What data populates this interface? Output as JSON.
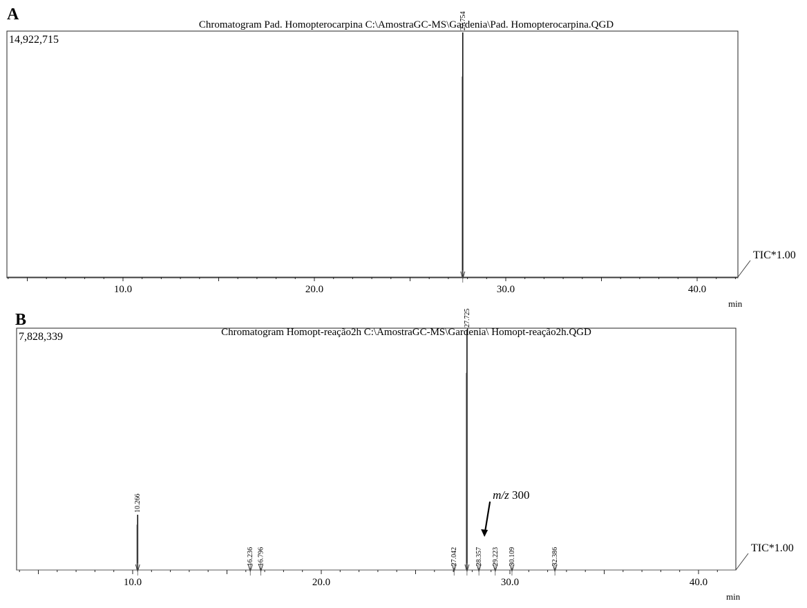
{
  "chart_data": [
    {
      "type": "line",
      "panel_label": "A",
      "title": "Chromatogram Pad. Homopterocarpina C:\\AmostraGC-MS\\Gardenia\\Pad. Homopterocarpina.QGD",
      "y_max_label": "14,922,715",
      "trace_label": "TIC*1.00",
      "xlabel": "min",
      "xlim": [
        3.5,
        42.0
      ],
      "x_ticks": [
        10.0,
        20.0,
        30.0,
        40.0
      ],
      "x_tick_labels": [
        "10.0",
        "20.0",
        "30.0",
        "40.0"
      ],
      "ylim": [
        0,
        14922715
      ],
      "peaks": [
        {
          "rt": 27.754,
          "label": "27.754",
          "height": 14922715
        }
      ],
      "annotations": []
    },
    {
      "type": "line",
      "panel_label": "B",
      "title": "Chromatogram  Homopt-reação2h C:\\AmostraGC-MS\\Gardenia\\ Homopt-reação2h.QGD",
      "y_max_label": "7,828,339",
      "trace_label": "TIC*1.00",
      "xlabel": "min",
      "xlim": [
        3.5,
        42.0
      ],
      "x_ticks": [
        10.0,
        20.0,
        30.0,
        40.0
      ],
      "x_tick_labels": [
        "10.0",
        "20.0",
        "30.0",
        "40.0"
      ],
      "ylim": [
        0,
        7828339
      ],
      "peaks": [
        {
          "rt": 10.266,
          "label": "10.266",
          "height": 1800000
        },
        {
          "rt": 16.236,
          "label": "16.236",
          "height": 60000
        },
        {
          "rt": 16.796,
          "label": "16.796",
          "height": 60000
        },
        {
          "rt": 27.042,
          "label": "27.042",
          "height": 60000
        },
        {
          "rt": 27.725,
          "label": "27.725",
          "height": 7828339
        },
        {
          "rt": 28.357,
          "label": "28.357",
          "height": 60000
        },
        {
          "rt": 29.223,
          "label": "29.223",
          "height": 60000
        },
        {
          "rt": 30.109,
          "label": "30.109",
          "height": 60000
        },
        {
          "rt": 32.386,
          "label": "32.386",
          "height": 60000
        }
      ],
      "annotations": [
        {
          "italic": "m/z",
          "text": " 300",
          "target_rt": 28.357
        }
      ]
    }
  ]
}
